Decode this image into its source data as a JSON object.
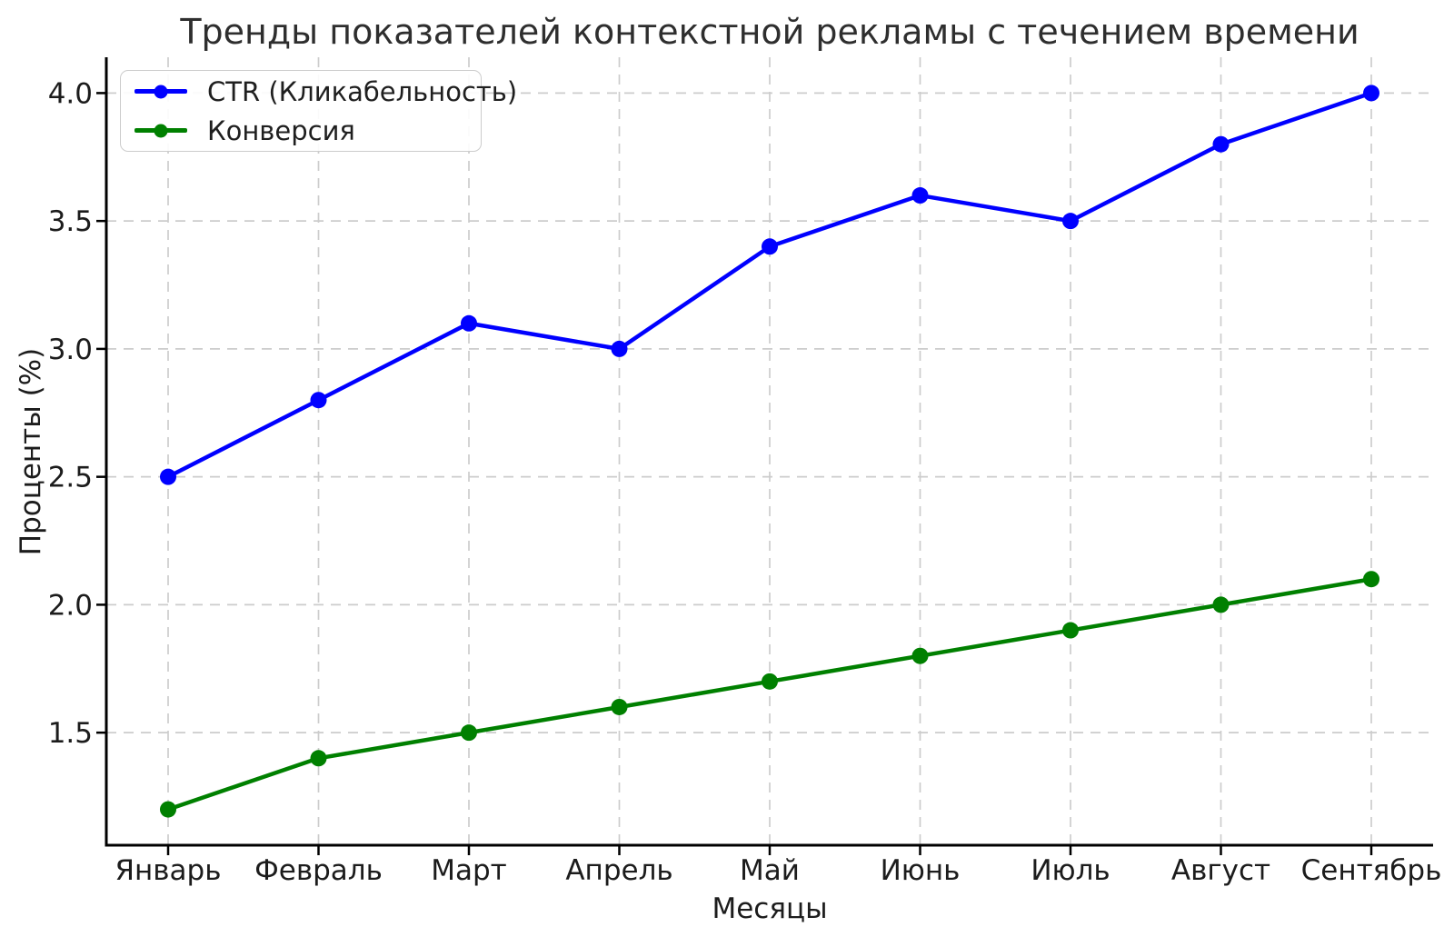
{
  "title": "Тренды показателей контекстной рекламы с течением времени",
  "chart_data": {
    "type": "line",
    "title": "Тренды показателей контекстной рекламы с течением времени",
    "xlabel": "Месяцы",
    "ylabel": "Проценты (%)",
    "categories": [
      "Январь",
      "Февраль",
      "Март",
      "Апрель",
      "Май",
      "Июнь",
      "Июль",
      "Август",
      "Сентябрь"
    ],
    "series": [
      {
        "name": "CTR (Кликабельность)",
        "color": "#0000ff",
        "values": [
          2.5,
          2.8,
          3.1,
          3.0,
          3.4,
          3.6,
          3.5,
          3.8,
          4.0
        ]
      },
      {
        "name": "Конверсия",
        "color": "#008000",
        "values": [
          1.2,
          1.4,
          1.5,
          1.6,
          1.7,
          1.8,
          1.9,
          2.0,
          2.1
        ]
      }
    ],
    "yticks": [
      "1.5",
      "2.0",
      "2.5",
      "3.0",
      "3.5",
      "4.0"
    ],
    "ylim": [
      1.06,
      4.14
    ],
    "grid": true,
    "grid_color": "#cccccc",
    "axis_color": "#000000",
    "text_color": "#1c1c1c",
    "legend_position": "upper left"
  }
}
